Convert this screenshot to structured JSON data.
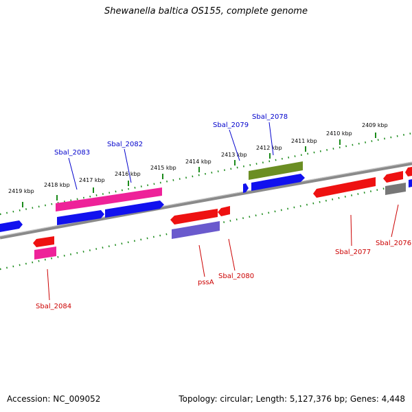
{
  "title": "Shewanella baltica OS155, complete genome",
  "footer": {
    "accession": "Accession: NC_009052",
    "summary": "Topology: circular; Length: 5,127,376 bp; Genes: 4,448"
  },
  "colors": {
    "backbone": "#888888",
    "tick": "#1a8a1a",
    "forward_label": "#0000cc",
    "reverse_label": "#cc0000",
    "red_gene": "#ee1111",
    "blue_gene": "#1111ee",
    "pink_gene": "#ee2299",
    "olive_gene": "#6b8e23",
    "lavender_gene": "#6a5acd",
    "gray_gene": "#777777"
  },
  "kbp_labels": [
    "2419 kbp",
    "2418 kbp",
    "2417 kbp",
    "2416 kbp",
    "2415 kbp",
    "2414 kbp",
    "2413 kbp",
    "2412 kbp",
    "2411 kbp",
    "2410 kbp",
    "2409 kbp"
  ],
  "genes_forward": [
    "Sbal_2083",
    "Sbal_2082",
    "Sbal_2079",
    "Sbal_2078"
  ],
  "genes_reverse": [
    "Sbal_2084",
    "pssA",
    "Sbal_2080",
    "Sbal_2077",
    "Sbal_2076"
  ]
}
